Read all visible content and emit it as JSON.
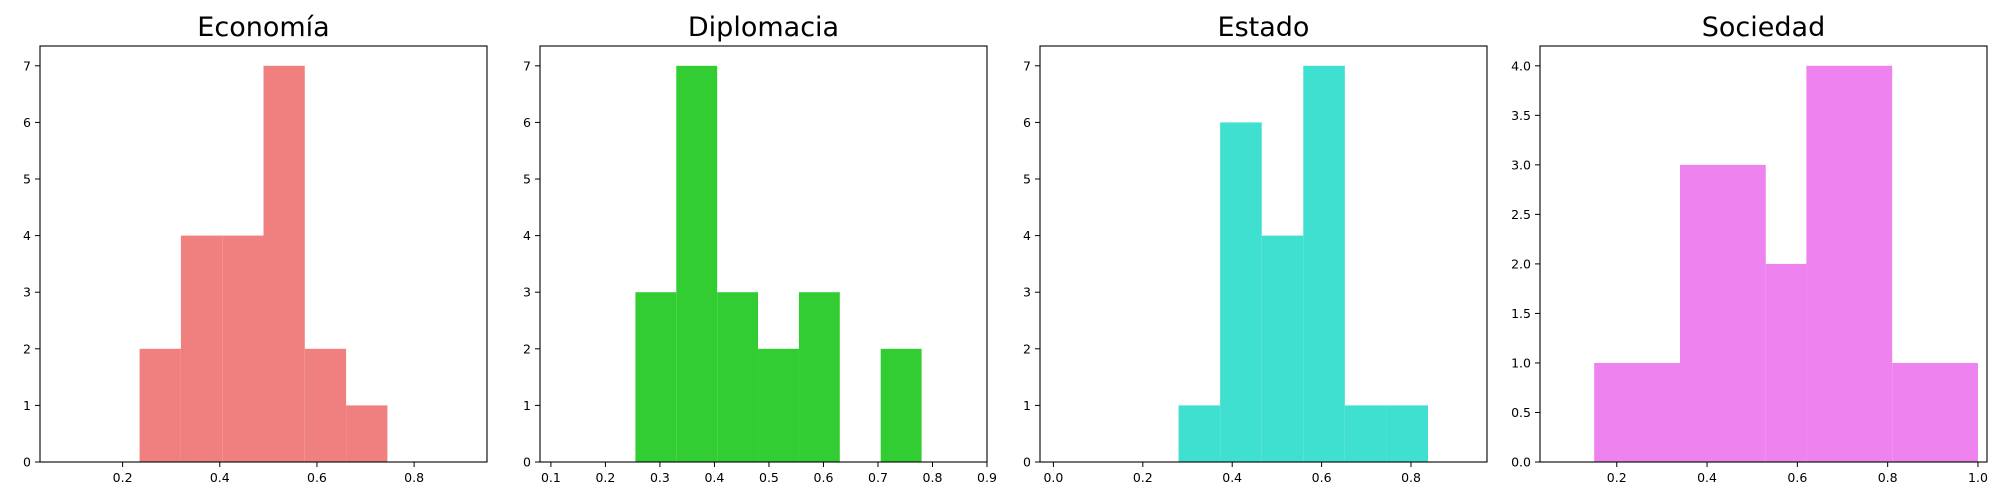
{
  "chart_data": [
    {
      "type": "bar",
      "title": "Economía",
      "color": "#F08080",
      "xlim": [
        0.03,
        0.95
      ],
      "ylim": [
        0,
        7.35
      ],
      "xticks": [
        0.2,
        0.4,
        0.6,
        0.8
      ],
      "xtick_labels": [
        "0.2",
        "0.4",
        "0.6",
        "0.8"
      ],
      "yticks": [
        0,
        1,
        2,
        3,
        4,
        5,
        6,
        7
      ],
      "ytick_labels": [
        "0",
        "1",
        "2",
        "3",
        "4",
        "5",
        "6",
        "7"
      ],
      "bins": [
        0.235,
        0.32,
        0.405,
        0.49,
        0.575,
        0.66,
        0.745
      ],
      "counts": [
        2,
        4,
        4,
        7,
        2,
        1
      ]
    },
    {
      "type": "bar",
      "title": "Diplomacia",
      "color": "#32CD32",
      "xlim": [
        0.08,
        0.9
      ],
      "ylim": [
        0,
        7.35
      ],
      "xticks": [
        0.1,
        0.2,
        0.3,
        0.4,
        0.5,
        0.6,
        0.7,
        0.8,
        0.9
      ],
      "xtick_labels": [
        "0.1",
        "0.2",
        "0.3",
        "0.4",
        "0.5",
        "0.6",
        "0.7",
        "0.8",
        "0.9"
      ],
      "yticks": [
        0,
        1,
        2,
        3,
        4,
        5,
        6,
        7
      ],
      "ytick_labels": [
        "0",
        "1",
        "2",
        "3",
        "4",
        "5",
        "6",
        "7"
      ],
      "bins": [
        0.255,
        0.33,
        0.405,
        0.48,
        0.555,
        0.63,
        0.705,
        0.78
      ],
      "counts": [
        3,
        7,
        3,
        2,
        3,
        0,
        2
      ]
    },
    {
      "type": "bar",
      "title": "Estado",
      "color": "#40E0D0",
      "xlim": [
        -0.03,
        0.97
      ],
      "ylim": [
        0,
        7.35
      ],
      "xticks": [
        0.0,
        0.2,
        0.4,
        0.6,
        0.8
      ],
      "xtick_labels": [
        "0.0",
        "0.2",
        "0.4",
        "0.6",
        "0.8"
      ],
      "yticks": [
        0,
        1,
        2,
        3,
        4,
        5,
        6,
        7
      ],
      "ytick_labels": [
        "0",
        "1",
        "2",
        "3",
        "4",
        "5",
        "6",
        "7"
      ],
      "bins": [
        0.28,
        0.373,
        0.466,
        0.559,
        0.652,
        0.745,
        0.838
      ],
      "counts": [
        1,
        6,
        4,
        7,
        1,
        1
      ]
    },
    {
      "type": "bar",
      "title": "Sociedad",
      "color": "#EE82EE",
      "xlim": [
        0.03,
        1.02
      ],
      "ylim": [
        0,
        4.2
      ],
      "xticks": [
        0.2,
        0.4,
        0.6,
        0.8,
        1.0
      ],
      "xtick_labels": [
        "0.2",
        "0.4",
        "0.6",
        "0.8",
        "1.0"
      ],
      "yticks": [
        0.0,
        0.5,
        1.0,
        1.5,
        2.0,
        2.5,
        3.0,
        3.5,
        4.0
      ],
      "ytick_labels": [
        "0.0",
        "0.5",
        "1.0",
        "1.5",
        "2.0",
        "2.5",
        "3.0",
        "3.5",
        "4.0"
      ],
      "bins": [
        0.15,
        0.34,
        0.53,
        0.62,
        0.81,
        1.0
      ],
      "counts": [
        1,
        3,
        2,
        4,
        1
      ]
    }
  ]
}
